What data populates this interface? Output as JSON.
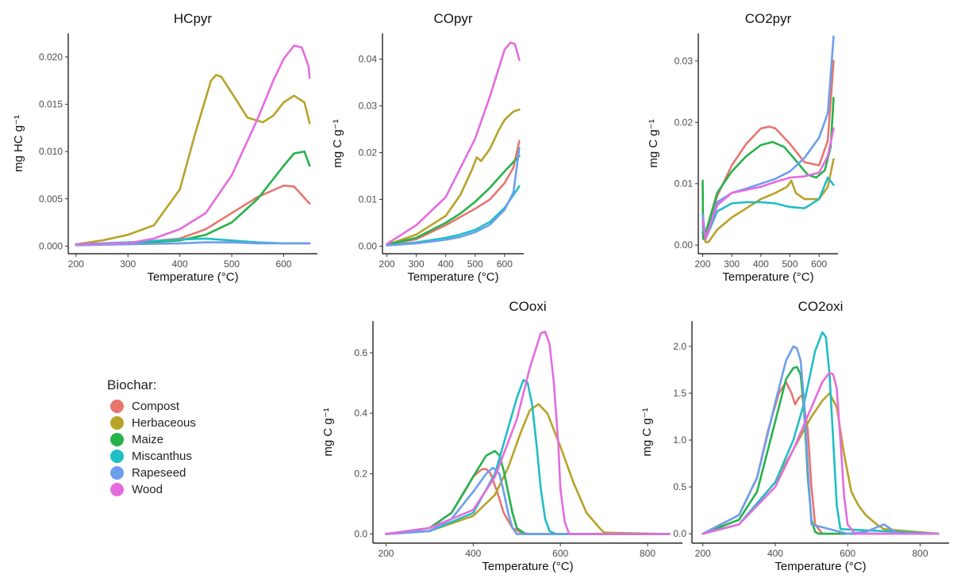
{
  "legend": {
    "title": "Biochar:",
    "items": [
      {
        "label": "Compost",
        "color": "#E7766F"
      },
      {
        "label": "Herbaceous",
        "color": "#B8A229"
      },
      {
        "label": "Maize",
        "color": "#26B24B"
      },
      {
        "label": "Miscanthus",
        "color": "#21BEC4"
      },
      {
        "label": "Rapeseed",
        "color": "#6D9EEC"
      },
      {
        "label": "Wood",
        "color": "#E46CE0"
      }
    ]
  },
  "chart_data": [
    {
      "type": "line",
      "title": "HCpyr",
      "xlabel": "Temperature (°C)",
      "ylabel": "mg HC g⁻¹",
      "xlim": [
        185,
        665
      ],
      "ylim": [
        -0.0008,
        0.0225
      ],
      "xticks": [
        200,
        300,
        400,
        500,
        600
      ],
      "yticks": [
        0.0,
        0.005,
        0.01,
        0.015,
        0.02
      ],
      "ytick_labels": [
        "0.000",
        "0.005",
        "0.010",
        "0.015",
        "0.020"
      ],
      "series": [
        {
          "name": "Compost",
          "x": [
            200,
            300,
            400,
            450,
            500,
            550,
            600,
            620,
            650
          ],
          "y": [
            0.0002,
            0.0003,
            0.0008,
            0.0018,
            0.0035,
            0.0052,
            0.0064,
            0.0063,
            0.0045
          ]
        },
        {
          "name": "Herbaceous",
          "x": [
            200,
            250,
            300,
            350,
            400,
            430,
            460,
            470,
            480,
            500,
            530,
            560,
            580,
            600,
            620,
            640,
            650
          ],
          "y": [
            0.0002,
            0.0006,
            0.0012,
            0.0022,
            0.006,
            0.012,
            0.0175,
            0.0181,
            0.0179,
            0.0162,
            0.0136,
            0.0131,
            0.0138,
            0.0152,
            0.0159,
            0.0152,
            0.013
          ]
        },
        {
          "name": "Maize",
          "x": [
            200,
            300,
            400,
            450,
            500,
            550,
            600,
            620,
            640,
            650
          ],
          "y": [
            0.0002,
            0.0003,
            0.0006,
            0.0012,
            0.0025,
            0.005,
            0.0085,
            0.0098,
            0.01,
            0.0085
          ]
        },
        {
          "name": "Miscanthus",
          "x": [
            200,
            300,
            400,
            450,
            500,
            550,
            600,
            650
          ],
          "y": [
            0.0002,
            0.0004,
            0.0007,
            0.0008,
            0.0006,
            0.0004,
            0.0003,
            0.0003
          ]
        },
        {
          "name": "Rapeseed",
          "x": [
            200,
            300,
            400,
            450,
            500,
            550,
            600,
            650
          ],
          "y": [
            0.0001,
            0.0002,
            0.0003,
            0.0004,
            0.0004,
            0.0003,
            0.0003,
            0.0003
          ]
        },
        {
          "name": "Wood",
          "x": [
            200,
            300,
            350,
            400,
            450,
            500,
            550,
            580,
            600,
            620,
            635,
            648,
            650
          ],
          "y": [
            0.0002,
            0.0003,
            0.0008,
            0.0018,
            0.0035,
            0.0075,
            0.0135,
            0.0175,
            0.0198,
            0.0212,
            0.021,
            0.019,
            0.0178
          ]
        }
      ]
    },
    {
      "type": "line",
      "title": "COpyr",
      "xlabel": "Temperature (°C)",
      "ylabel": "mg C g⁻¹",
      "xlim": [
        185,
        665
      ],
      "ylim": [
        -0.0016,
        0.0455
      ],
      "xticks": [
        200,
        300,
        400,
        500,
        600
      ],
      "yticks": [
        0.0,
        0.01,
        0.02,
        0.03,
        0.04
      ],
      "ytick_labels": [
        "0.00",
        "0.01",
        "0.02",
        "0.03",
        "0.04"
      ],
      "series": [
        {
          "name": "Compost",
          "x": [
            200,
            300,
            400,
            500,
            550,
            600,
            630,
            650
          ],
          "y": [
            0.0003,
            0.0015,
            0.0045,
            0.008,
            0.01,
            0.0135,
            0.0168,
            0.0225
          ]
        },
        {
          "name": "Herbaceous",
          "x": [
            200,
            300,
            400,
            450,
            490,
            505,
            520,
            550,
            580,
            600,
            630,
            650
          ],
          "y": [
            0.0003,
            0.0025,
            0.0065,
            0.011,
            0.0165,
            0.019,
            0.0182,
            0.0208,
            0.0248,
            0.027,
            0.0288,
            0.0292
          ]
        },
        {
          "name": "Maize",
          "x": [
            200,
            300,
            400,
            450,
            500,
            550,
            600,
            650
          ],
          "y": [
            0.0003,
            0.0018,
            0.005,
            0.007,
            0.0095,
            0.0125,
            0.016,
            0.0193
          ]
        },
        {
          "name": "Miscanthus",
          "x": [
            200,
            300,
            400,
            450,
            500,
            550,
            600,
            650
          ],
          "y": [
            0.0002,
            0.0008,
            0.0018,
            0.0025,
            0.0035,
            0.0052,
            0.0082,
            0.0128
          ]
        },
        {
          "name": "Rapeseed",
          "x": [
            200,
            300,
            400,
            450,
            500,
            550,
            600,
            630,
            650
          ],
          "y": [
            0.0002,
            0.0006,
            0.0014,
            0.002,
            0.003,
            0.0046,
            0.0078,
            0.0115,
            0.021
          ]
        },
        {
          "name": "Wood",
          "x": [
            200,
            250,
            300,
            400,
            500,
            550,
            580,
            600,
            620,
            635,
            650
          ],
          "y": [
            0.0005,
            0.0025,
            0.0045,
            0.0105,
            0.023,
            0.032,
            0.038,
            0.042,
            0.0435,
            0.0432,
            0.0398
          ]
        }
      ]
    },
    {
      "type": "line",
      "title": "CO2pyr",
      "xlabel": "Temperature (°C)",
      "ylabel": "mg C g⁻¹",
      "xlim": [
        185,
        665
      ],
      "ylim": [
        -0.0014,
        0.0345
      ],
      "xticks": [
        200,
        300,
        400,
        500,
        600
      ],
      "yticks": [
        0.0,
        0.01,
        0.02,
        0.03
      ],
      "ytick_labels": [
        "0.00",
        "0.01",
        "0.02",
        "0.03"
      ],
      "series": [
        {
          "name": "Compost",
          "x": [
            200,
            205,
            215,
            250,
            300,
            350,
            400,
            430,
            450,
            500,
            550,
            600,
            630,
            650
          ],
          "y": [
            0.006,
            0.001,
            0.002,
            0.008,
            0.013,
            0.0165,
            0.019,
            0.0193,
            0.019,
            0.0165,
            0.0135,
            0.013,
            0.017,
            0.03
          ]
        },
        {
          "name": "Herbaceous",
          "x": [
            200,
            210,
            220,
            250,
            300,
            350,
            400,
            450,
            490,
            505,
            520,
            550,
            600,
            630,
            650
          ],
          "y": [
            0.002,
            0.0005,
            0.0005,
            0.0025,
            0.0045,
            0.006,
            0.0075,
            0.0085,
            0.0095,
            0.0105,
            0.0085,
            0.0075,
            0.0075,
            0.0095,
            0.014
          ]
        },
        {
          "name": "Maize",
          "x": [
            200,
            202,
            210,
            250,
            300,
            350,
            400,
            440,
            480,
            520,
            560,
            590,
            620,
            640,
            650
          ],
          "y": [
            0.0105,
            0.001,
            0.002,
            0.0085,
            0.012,
            0.0145,
            0.0163,
            0.0168,
            0.016,
            0.0138,
            0.0115,
            0.011,
            0.0122,
            0.016,
            0.024
          ]
        },
        {
          "name": "Miscanthus",
          "x": [
            200,
            210,
            250,
            300,
            350,
            400,
            450,
            500,
            550,
            600,
            630,
            650
          ],
          "y": [
            0.003,
            0.001,
            0.0055,
            0.0068,
            0.007,
            0.007,
            0.0068,
            0.0062,
            0.006,
            0.0075,
            0.011,
            0.0098
          ]
        },
        {
          "name": "Rapeseed",
          "x": [
            200,
            210,
            250,
            300,
            350,
            400,
            450,
            500,
            550,
            600,
            630,
            650
          ],
          "y": [
            0.005,
            0.001,
            0.007,
            0.0085,
            0.0092,
            0.01,
            0.0108,
            0.012,
            0.0142,
            0.0175,
            0.0215,
            0.034
          ]
        },
        {
          "name": "Wood",
          "x": [
            200,
            210,
            250,
            300,
            350,
            400,
            450,
            500,
            550,
            600,
            630,
            650
          ],
          "y": [
            0.004,
            0.001,
            0.0065,
            0.0085,
            0.009,
            0.0095,
            0.0103,
            0.011,
            0.0112,
            0.0118,
            0.0145,
            0.019
          ]
        }
      ]
    },
    {
      "type": "line",
      "title": "COoxi",
      "xlabel": "Temperature (°C)",
      "ylabel": "mg C g⁻¹",
      "xlim": [
        170,
        880
      ],
      "ylim": [
        -0.03,
        0.705
      ],
      "xticks": [
        200,
        400,
        600,
        800
      ],
      "yticks": [
        0.0,
        0.2,
        0.4,
        0.6
      ],
      "ytick_labels": [
        "0.0",
        "0.2",
        "0.4",
        "0.6"
      ],
      "series": [
        {
          "name": "Compost",
          "x": [
            200,
            300,
            350,
            380,
            400,
            420,
            430,
            440,
            455,
            470,
            490,
            510,
            530,
            560,
            850
          ],
          "y": [
            0,
            0.02,
            0.07,
            0.14,
            0.19,
            0.215,
            0.215,
            0.2,
            0.14,
            0.07,
            0.02,
            0.005,
            0,
            0,
            0
          ]
        },
        {
          "name": "Herbaceous",
          "x": [
            200,
            300,
            400,
            450,
            480,
            510,
            530,
            550,
            570,
            600,
            630,
            660,
            690,
            700,
            850
          ],
          "y": [
            0,
            0.01,
            0.06,
            0.13,
            0.22,
            0.34,
            0.41,
            0.43,
            0.4,
            0.29,
            0.17,
            0.07,
            0.02,
            0.005,
            0
          ]
        },
        {
          "name": "Maize",
          "x": [
            200,
            300,
            350,
            400,
            430,
            450,
            460,
            470,
            480,
            490,
            500,
            520,
            850
          ],
          "y": [
            0,
            0.02,
            0.07,
            0.19,
            0.26,
            0.275,
            0.26,
            0.21,
            0.14,
            0.07,
            0.02,
            0,
            0
          ]
        },
        {
          "name": "Miscanthus",
          "x": [
            200,
            300,
            400,
            450,
            480,
            500,
            515,
            525,
            535,
            545,
            555,
            565,
            575,
            590,
            850
          ],
          "y": [
            0,
            0.01,
            0.07,
            0.2,
            0.35,
            0.45,
            0.51,
            0.5,
            0.43,
            0.3,
            0.15,
            0.05,
            0.01,
            0,
            0
          ]
        },
        {
          "name": "Rapeseed",
          "x": [
            200,
            300,
            350,
            400,
            430,
            445,
            460,
            470,
            480,
            490,
            500,
            850
          ],
          "y": [
            0,
            0.01,
            0.05,
            0.14,
            0.2,
            0.22,
            0.2,
            0.14,
            0.07,
            0.02,
            0,
            0
          ]
        },
        {
          "name": "Wood",
          "x": [
            200,
            300,
            400,
            450,
            500,
            530,
            555,
            565,
            575,
            585,
            595,
            600,
            610,
            620,
            850
          ],
          "y": [
            0,
            0.02,
            0.08,
            0.19,
            0.38,
            0.55,
            0.665,
            0.67,
            0.63,
            0.5,
            0.3,
            0.15,
            0.04,
            0,
            0
          ]
        }
      ]
    },
    {
      "type": "line",
      "title": "CO2oxi",
      "xlabel": "Temperature (°C)",
      "ylabel": "mg C g⁻¹",
      "xlim": [
        170,
        880
      ],
      "ylim": [
        -0.1,
        2.27
      ],
      "xticks": [
        200,
        400,
        600,
        800
      ],
      "yticks": [
        0.0,
        0.5,
        1.0,
        1.5,
        2.0
      ],
      "ytick_labels": [
        "0.0",
        "0.5",
        "1.0",
        "1.5",
        "2.0"
      ],
      "series": [
        {
          "name": "Compost",
          "x": [
            200,
            300,
            350,
            380,
            410,
            430,
            445,
            455,
            465,
            475,
            490,
            500,
            510,
            530,
            850
          ],
          "y": [
            0,
            0.2,
            0.6,
            1.1,
            1.5,
            1.62,
            1.5,
            1.38,
            1.45,
            1.48,
            1.1,
            0.5,
            0.1,
            0,
            0
          ]
        },
        {
          "name": "Herbaceous",
          "x": [
            200,
            300,
            400,
            450,
            500,
            530,
            550,
            570,
            590,
            610,
            630,
            650,
            680,
            700,
            850
          ],
          "y": [
            0,
            0.1,
            0.55,
            0.9,
            1.25,
            1.42,
            1.5,
            1.35,
            0.85,
            0.45,
            0.3,
            0.2,
            0.1,
            0.05,
            0
          ]
        },
        {
          "name": "Maize",
          "x": [
            200,
            300,
            350,
            400,
            430,
            450,
            460,
            470,
            480,
            490,
            500,
            510,
            520,
            850
          ],
          "y": [
            0,
            0.15,
            0.45,
            1.2,
            1.65,
            1.77,
            1.78,
            1.7,
            1.3,
            0.6,
            0.15,
            0.02,
            0,
            0
          ]
        },
        {
          "name": "Miscanthus",
          "x": [
            200,
            300,
            400,
            450,
            480,
            510,
            530,
            540,
            550,
            560,
            570,
            580,
            850
          ],
          "y": [
            0,
            0.1,
            0.55,
            1.0,
            1.4,
            1.95,
            2.15,
            2.1,
            1.7,
            1.0,
            0.3,
            0.05,
            0
          ]
        },
        {
          "name": "Rapeseed",
          "x": [
            200,
            300,
            350,
            400,
            430,
            450,
            460,
            470,
            480,
            490,
            500,
            600,
            650,
            700,
            720,
            740,
            850
          ],
          "y": [
            0,
            0.2,
            0.6,
            1.4,
            1.85,
            2.0,
            1.98,
            1.85,
            1.4,
            0.7,
            0.1,
            0,
            0.02,
            0.1,
            0.05,
            0,
            0
          ]
        },
        {
          "name": "Wood",
          "x": [
            200,
            300,
            400,
            450,
            500,
            530,
            550,
            560,
            570,
            580,
            590,
            600,
            620,
            850
          ],
          "y": [
            0,
            0.1,
            0.5,
            0.9,
            1.35,
            1.62,
            1.72,
            1.7,
            1.55,
            1.0,
            0.4,
            0.1,
            0,
            0
          ]
        }
      ]
    }
  ]
}
